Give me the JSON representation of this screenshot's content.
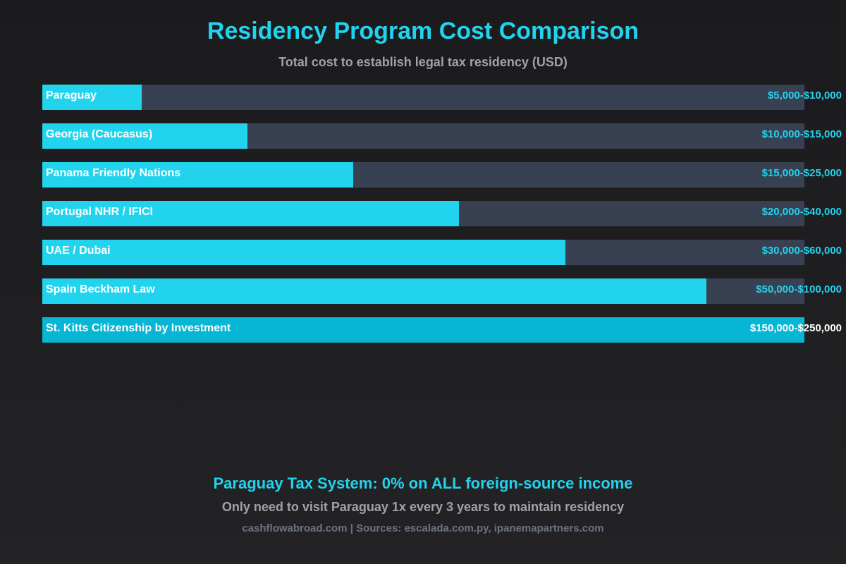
{
  "colors": {
    "background": "#1c1c1f",
    "accent": "#22d3ee",
    "bar_highlight": "#06b6d4",
    "track": "#374151",
    "muted_text": "#a1a1aa",
    "dim_text": "#6b7280",
    "white": "#ffffff"
  },
  "chart_data": {
    "type": "bar",
    "orientation": "horizontal",
    "title": "Residency Program Cost Comparison",
    "subtitle": "Total cost to establish legal tax residency (USD)",
    "categories": [
      "Paraguay",
      "Georgia (Caucasus)",
      "Panama Friendly Nations",
      "Portugal NHR / IFICI",
      "UAE / Dubai",
      "Spain Beckham Law",
      "St. Kitts Citizenship by Investment"
    ],
    "value_labels": [
      "$5,000-$10,000",
      "$10,000-$15,000",
      "$15,000-$25,000",
      "$20,000-$40,000",
      "$30,000-$60,000",
      "$50,000-$100,000",
      "$150,000-$250,000"
    ],
    "bar_fraction": [
      0.13,
      0.269,
      0.408,
      0.547,
      0.686,
      0.871,
      1.0
    ],
    "highlight_index": 6,
    "grid": false,
    "legend": "none"
  },
  "footer": {
    "highlight": "Paraguay Tax System: 0% on ALL foreign-source income",
    "note": "Only need to visit Paraguay 1x every 3 years to maintain residency",
    "source": "cashflowabroad.com | Sources: escalada.com.py, ipanemapartners.com"
  }
}
